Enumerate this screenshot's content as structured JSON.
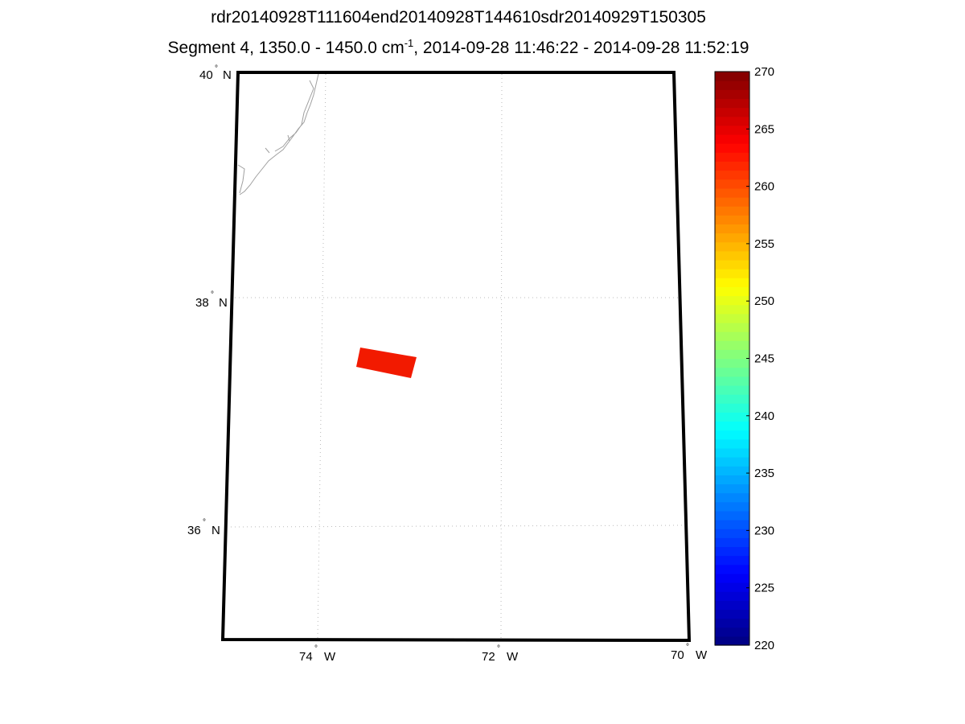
{
  "title_line1": "rdr20140928T111604end20140928T144610sdr20140929T150305",
  "title_line2_pre": "Segment 4, 1350.0 - 1450.0 cm",
  "title_line2_sup": "-1",
  "title_line2_post": ", 2014-09-28 11:46:22 - 2014-09-28 11:52:19",
  "lat_labels": [
    {
      "deg": "40",
      "hem": "N"
    },
    {
      "deg": "38",
      "hem": "N"
    },
    {
      "deg": "36",
      "hem": "N"
    }
  ],
  "lon_labels": [
    {
      "deg": "74",
      "hem": "W"
    },
    {
      "deg": "72",
      "hem": "W"
    },
    {
      "deg": "70",
      "hem": "W"
    }
  ],
  "chart_data": {
    "type": "heatmap",
    "colormap": "jet",
    "clim": [
      220,
      270
    ],
    "colorbar_ticks": [
      "270",
      "265",
      "260",
      "255",
      "250",
      "245",
      "240",
      "235",
      "230",
      "225",
      "220"
    ],
    "swath_value_approx": 264,
    "swath_color": "#f21a00",
    "lat_range": [
      35,
      40
    ],
    "lon_range": [
      -75,
      -70
    ],
    "coastline_color": "#a0a0a0"
  }
}
